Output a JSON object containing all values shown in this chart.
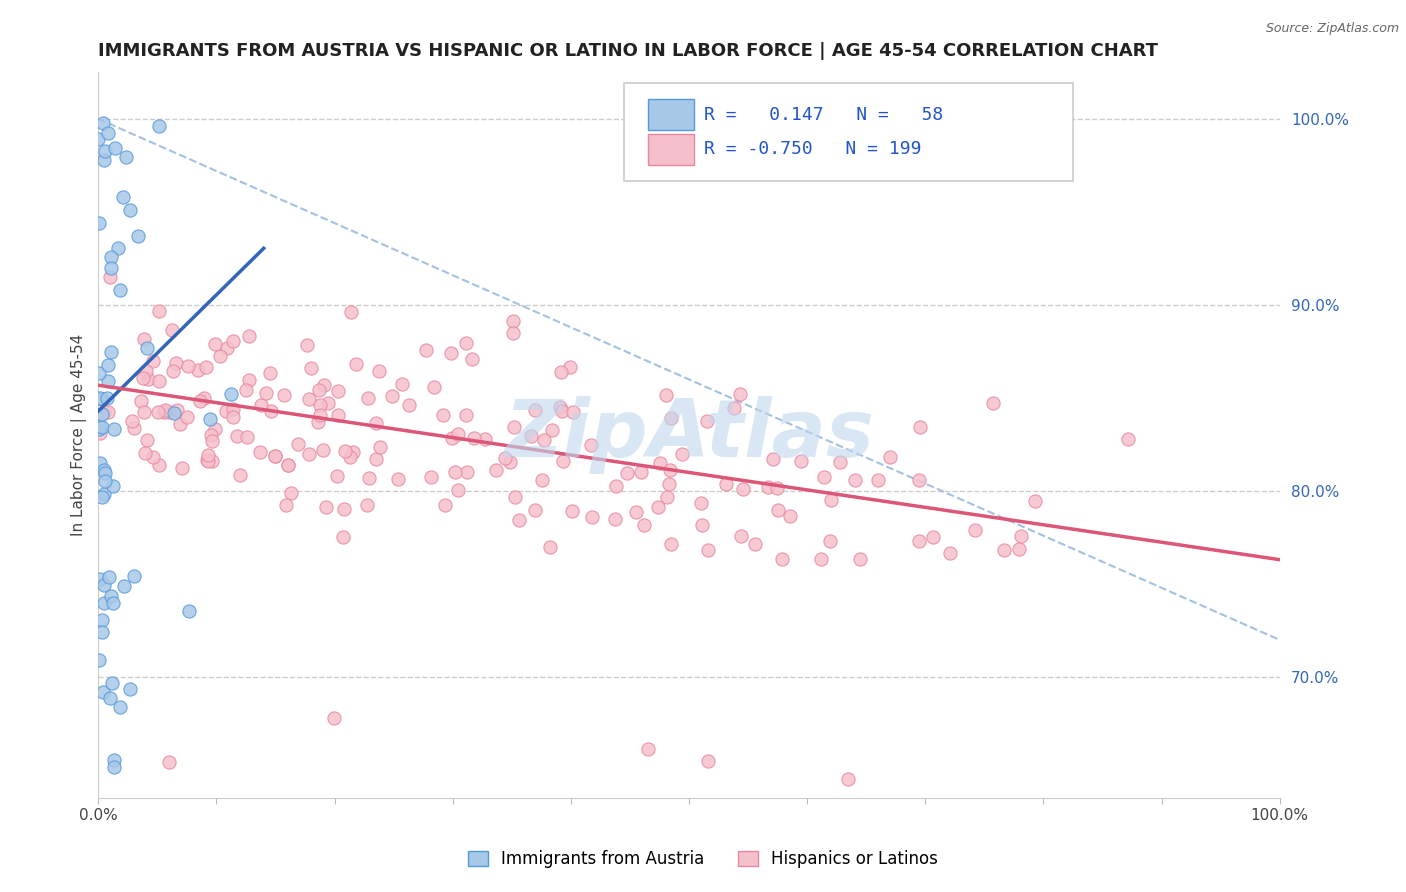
{
  "title": "IMMIGRANTS FROM AUSTRIA VS HISPANIC OR LATINO IN LABOR FORCE | AGE 45-54 CORRELATION CHART",
  "source_text": "Source: ZipAtlas.com",
  "ylabel": "In Labor Force | Age 45-54",
  "xlim": [
    0.0,
    1.0
  ],
  "ylim": [
    0.635,
    1.025
  ],
  "yticks": [
    0.7,
    0.8,
    0.9,
    1.0
  ],
  "ytick_labels_right": [
    "70.0%",
    "80.0%",
    "90.0%",
    "100.0%"
  ],
  "xticks": [
    0.0,
    0.1,
    0.2,
    0.3,
    0.4,
    0.5,
    0.6,
    0.7,
    0.8,
    0.9,
    1.0
  ],
  "blue_R": 0.147,
  "blue_N": 58,
  "pink_R": -0.75,
  "pink_N": 199,
  "blue_color": "#a8c8e8",
  "blue_edge": "#5599dd",
  "pink_color": "#f5c0cc",
  "pink_edge": "#e888a0",
  "blue_line_color": "#3366bb",
  "pink_line_color": "#dd5577",
  "dash_line_color": "#99bbdd",
  "watermark": "ZipAtlas",
  "watermark_color": "#c0d8ee",
  "legend_label_blue": "Immigrants from Austria",
  "legend_label_pink": "Hispanics or Latinos",
  "title_fontsize": 13,
  "axis_label_fontsize": 11,
  "tick_fontsize": 11,
  "legend_fontsize": 12,
  "right_tick_color": "#3366bb"
}
